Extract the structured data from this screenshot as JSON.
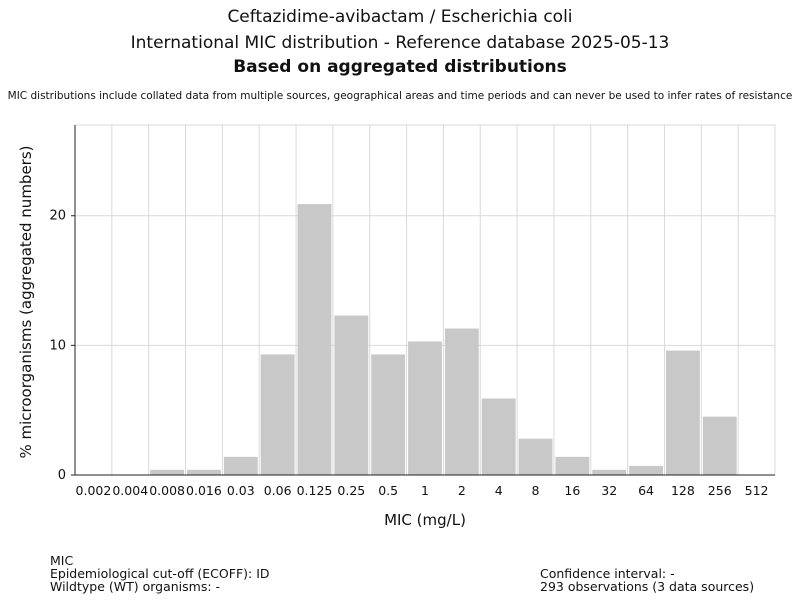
{
  "header": {
    "title_line1": "Ceftazidime-avibactam / Escherichia coli",
    "title_line2": "International MIC distribution - Reference database 2025-05-13",
    "title_line3": "Based on aggregated distributions",
    "disclaimer": "MIC distributions include collated data from multiple sources, geographical areas and time periods and can never be used to infer rates of resistance"
  },
  "footer": {
    "mic_label": "MIC",
    "ecoff": "Epidemiological cut-off (ECOFF): ID",
    "wt": "Wildtype (WT) organisms:  -",
    "ci": "Confidence interval: -",
    "observations": "293 observations (3 data sources)"
  },
  "colors": {
    "bar": "#c8c8c8",
    "grid": "#d9d9d9",
    "axis": "#222222"
  },
  "chart_data": {
    "type": "bar",
    "xlabel": "MIC (mg/L)",
    "ylabel": "% microorganisms (aggregated numbers)",
    "categories": [
      "0.002",
      "0.004",
      "0.008",
      "0.016",
      "0.03",
      "0.06",
      "0.125",
      "0.25",
      "0.5",
      "1",
      "2",
      "4",
      "8",
      "16",
      "32",
      "64",
      "128",
      "256",
      "512"
    ],
    "values": [
      0,
      0,
      0.4,
      0.4,
      1.4,
      9.3,
      20.9,
      12.3,
      9.3,
      10.3,
      11.3,
      5.9,
      2.8,
      1.4,
      0.4,
      0.7,
      9.6,
      4.5,
      0
    ],
    "ylim": [
      0,
      27
    ],
    "yticks": [
      0,
      10,
      20
    ],
    "grid": true
  }
}
